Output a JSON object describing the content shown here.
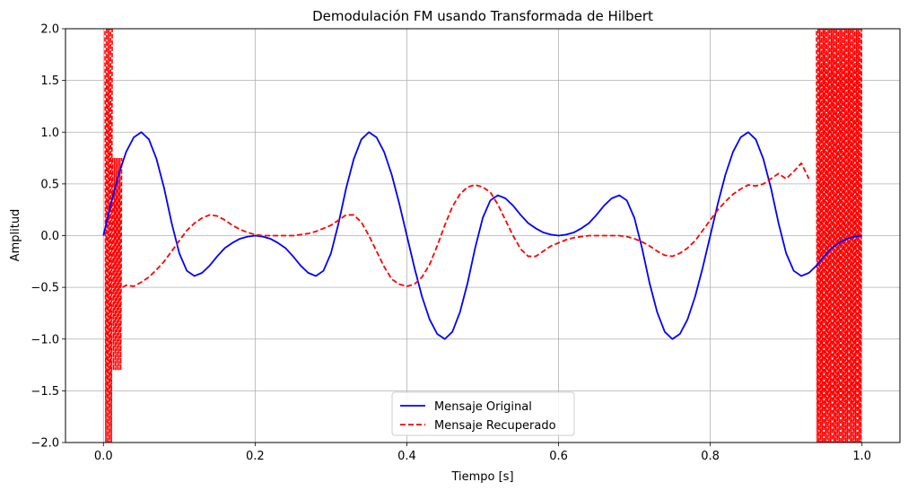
{
  "chart_data": {
    "type": "line",
    "title": "Demodulación FM usando Transformada de Hilbert",
    "xlabel": "Tiempo [s]",
    "ylabel": "Amplitud",
    "xlim": [
      -0.05,
      1.05
    ],
    "ylim": [
      -2.0,
      2.0
    ],
    "xticks": [
      0.0,
      0.2,
      0.4,
      0.6,
      0.8,
      1.0
    ],
    "xtick_labels": [
      "0.0",
      "0.2",
      "0.4",
      "0.6",
      "0.8",
      "1.0"
    ],
    "yticks": [
      -2.0,
      -1.5,
      -1.0,
      -0.5,
      0.0,
      0.5,
      1.0,
      1.5,
      2.0
    ],
    "ytick_labels": [
      "−2.0",
      "−1.5",
      "−1.0",
      "−0.5",
      "0.0",
      "0.5",
      "1.0",
      "1.5",
      "2.0"
    ],
    "grid": true,
    "legend_position": "lower-center",
    "series": [
      {
        "name": "Mensaje Original",
        "color": "#0000ff",
        "style": "solid",
        "x": [
          0.0,
          0.01,
          0.02,
          0.03,
          0.04,
          0.05,
          0.06,
          0.07,
          0.08,
          0.09,
          0.1,
          0.11,
          0.12,
          0.13,
          0.14,
          0.15,
          0.16,
          0.17,
          0.18,
          0.19,
          0.2,
          0.21,
          0.22,
          0.23,
          0.24,
          0.25,
          0.26,
          0.27,
          0.28,
          0.29,
          0.3,
          0.31,
          0.32,
          0.33,
          0.34,
          0.35,
          0.36,
          0.37,
          0.38,
          0.39,
          0.4,
          0.41,
          0.42,
          0.43,
          0.44,
          0.45,
          0.46,
          0.47,
          0.48,
          0.49,
          0.5,
          0.51,
          0.52,
          0.53,
          0.54,
          0.55,
          0.56,
          0.57,
          0.58,
          0.59,
          0.6,
          0.61,
          0.62,
          0.63,
          0.64,
          0.65,
          0.66,
          0.67,
          0.68,
          0.69,
          0.7,
          0.71,
          0.72,
          0.73,
          0.74,
          0.75,
          0.76,
          0.77,
          0.78,
          0.79,
          0.8,
          0.81,
          0.82,
          0.83,
          0.84,
          0.85,
          0.86,
          0.87,
          0.88,
          0.89,
          0.9,
          0.91,
          0.92,
          0.93,
          0.94,
          0.95,
          0.96,
          0.97,
          0.98,
          0.99,
          1.0
        ],
        "y": [
          0.0,
          0.31,
          0.59,
          0.81,
          0.95,
          1.0,
          0.93,
          0.74,
          0.46,
          0.12,
          -0.17,
          -0.34,
          -0.39,
          -0.36,
          -0.29,
          -0.2,
          -0.12,
          -0.07,
          -0.03,
          -0.01,
          0.0,
          -0.01,
          -0.03,
          -0.07,
          -0.12,
          -0.2,
          -0.29,
          -0.36,
          -0.39,
          -0.34,
          -0.17,
          0.12,
          0.46,
          0.74,
          0.93,
          1.0,
          0.95,
          0.81,
          0.59,
          0.31,
          0.0,
          -0.31,
          -0.59,
          -0.81,
          -0.95,
          -1.0,
          -0.93,
          -0.74,
          -0.46,
          -0.12,
          0.17,
          0.34,
          0.39,
          0.36,
          0.29,
          0.2,
          0.12,
          0.07,
          0.03,
          0.01,
          0.0,
          0.01,
          0.03,
          0.07,
          0.12,
          0.2,
          0.29,
          0.36,
          0.39,
          0.34,
          0.17,
          -0.12,
          -0.46,
          -0.74,
          -0.93,
          -1.0,
          -0.95,
          -0.81,
          -0.59,
          -0.31,
          0.0,
          0.31,
          0.59,
          0.81,
          0.95,
          1.0,
          0.93,
          0.74,
          0.46,
          0.12,
          -0.17,
          -0.34,
          -0.39,
          -0.36,
          -0.29,
          -0.2,
          -0.12,
          -0.07,
          -0.03,
          -0.01,
          0.0
        ]
      },
      {
        "name": "Mensaje Recuperado",
        "color": "#ff0000",
        "style": "dashed",
        "x": [
          0.025,
          0.03,
          0.04,
          0.05,
          0.06,
          0.07,
          0.08,
          0.09,
          0.1,
          0.11,
          0.12,
          0.13,
          0.14,
          0.15,
          0.16,
          0.17,
          0.18,
          0.19,
          0.2,
          0.21,
          0.22,
          0.23,
          0.24,
          0.25,
          0.26,
          0.27,
          0.28,
          0.29,
          0.3,
          0.31,
          0.32,
          0.33,
          0.34,
          0.35,
          0.36,
          0.37,
          0.38,
          0.39,
          0.4,
          0.41,
          0.42,
          0.43,
          0.44,
          0.45,
          0.46,
          0.47,
          0.48,
          0.49,
          0.5,
          0.51,
          0.52,
          0.53,
          0.54,
          0.55,
          0.56,
          0.57,
          0.58,
          0.59,
          0.6,
          0.61,
          0.62,
          0.63,
          0.64,
          0.65,
          0.66,
          0.67,
          0.68,
          0.69,
          0.7,
          0.71,
          0.72,
          0.73,
          0.74,
          0.75,
          0.76,
          0.77,
          0.78,
          0.79,
          0.8,
          0.81,
          0.82,
          0.83,
          0.84,
          0.85,
          0.86,
          0.87,
          0.88,
          0.89,
          0.9,
          0.91,
          0.92,
          0.93
        ],
        "y": [
          -0.5,
          -0.48,
          -0.49,
          -0.45,
          -0.4,
          -0.33,
          -0.25,
          -0.15,
          -0.05,
          0.05,
          0.12,
          0.17,
          0.2,
          0.19,
          0.15,
          0.1,
          0.06,
          0.03,
          0.01,
          0.0,
          0.0,
          0.0,
          0.0,
          0.0,
          0.01,
          0.02,
          0.04,
          0.07,
          0.1,
          0.15,
          0.2,
          0.2,
          0.13,
          0.0,
          -0.15,
          -0.3,
          -0.42,
          -0.47,
          -0.49,
          -0.47,
          -0.4,
          -0.28,
          -0.1,
          0.1,
          0.28,
          0.4,
          0.47,
          0.49,
          0.47,
          0.42,
          0.3,
          0.15,
          0.0,
          -0.13,
          -0.2,
          -0.2,
          -0.15,
          -0.1,
          -0.07,
          -0.04,
          -0.02,
          -0.01,
          0.0,
          0.0,
          0.0,
          0.0,
          0.0,
          -0.01,
          -0.03,
          -0.06,
          -0.1,
          -0.15,
          -0.19,
          -0.2,
          -0.17,
          -0.12,
          -0.05,
          0.05,
          0.15,
          0.25,
          0.33,
          0.4,
          0.45,
          0.49,
          0.48,
          0.5,
          0.55,
          0.6,
          0.55,
          0.62,
          0.7,
          0.55
        ]
      }
    ]
  }
}
